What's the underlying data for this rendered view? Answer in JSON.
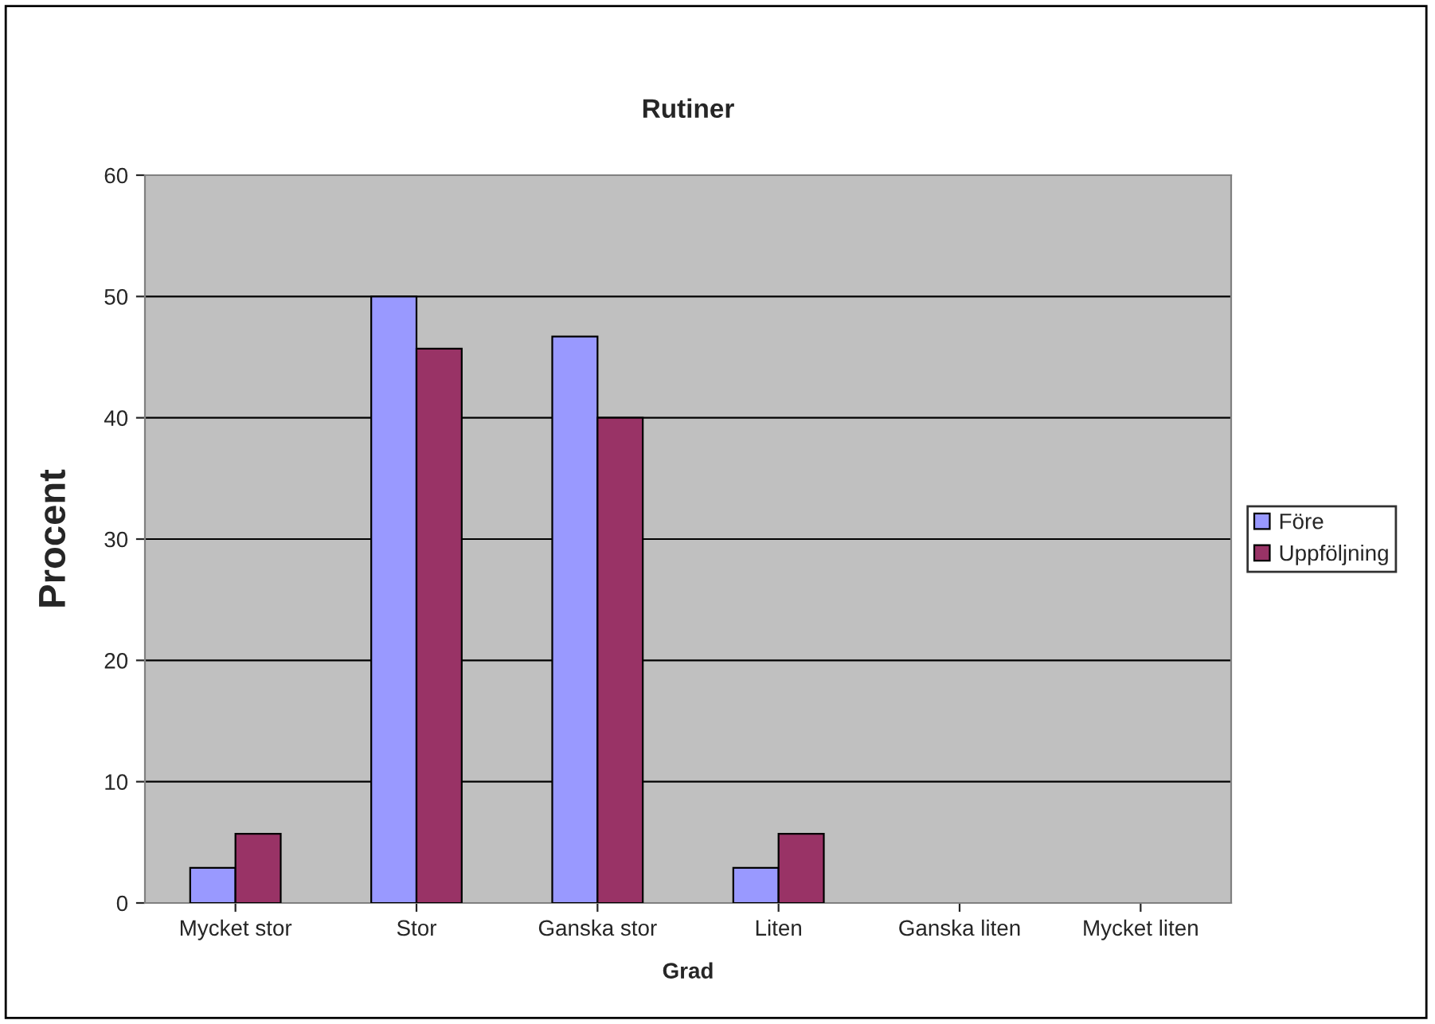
{
  "chart_data": {
    "type": "bar",
    "title": "Rutiner",
    "xlabel": "Grad",
    "ylabel": "Procent",
    "categories": [
      "Mycket stor",
      "Stor",
      "Ganska stor",
      "Liten",
      "Ganska liten",
      "Mycket liten"
    ],
    "series": [
      {
        "name": "Före",
        "color": "#9999ff",
        "values": [
          2.9,
          50,
          46.7,
          2.9,
          null,
          null
        ]
      },
      {
        "name": "Uppföljning",
        "color": "#993366",
        "values": [
          5.7,
          45.7,
          40,
          5.7,
          null,
          null
        ]
      }
    ],
    "ylim": [
      0,
      60
    ],
    "yticks": [
      0,
      10,
      20,
      30,
      40,
      50,
      60
    ],
    "grid": "y",
    "legend": "right"
  }
}
